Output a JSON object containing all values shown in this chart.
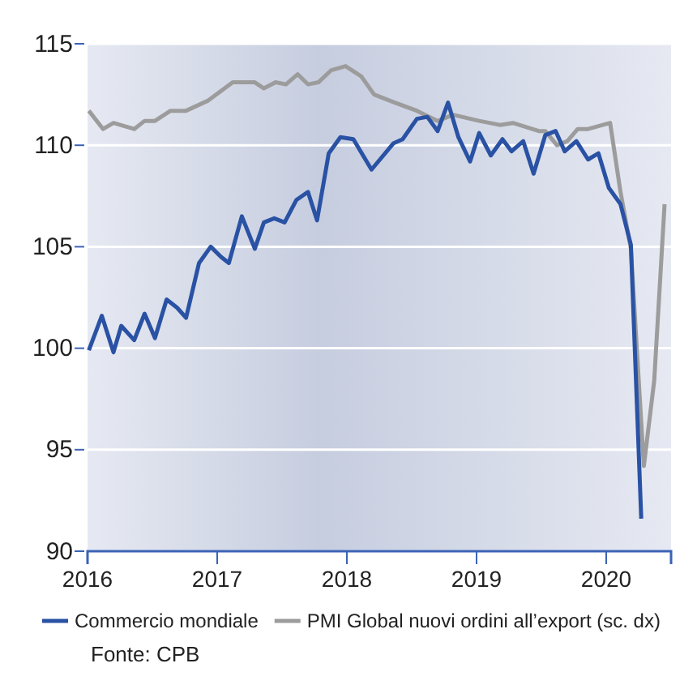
{
  "chart_data": {
    "type": "line",
    "xlim": [
      2016,
      2020.5
    ],
    "xticks": [
      2016,
      2017,
      2018,
      2019,
      2020
    ],
    "ylim": [
      90,
      115
    ],
    "yticks": [
      90,
      95,
      100,
      105,
      110,
      115
    ],
    "grid": "y",
    "legend": "bottom",
    "line_style": "solid",
    "marker": "none",
    "series": [
      {
        "name": "Commercio mondiale",
        "color": "#2a52a4",
        "x": [
          2016.01,
          2016.11,
          2016.2,
          2016.26,
          2016.36,
          2016.44,
          2016.52,
          2016.61,
          2016.69,
          2016.76,
          2016.86,
          2016.95,
          2017.03,
          2017.09,
          2017.19,
          2017.29,
          2017.36,
          2017.44,
          2017.52,
          2017.61,
          2017.7,
          2017.77,
          2017.86,
          2017.95,
          2018.05,
          2018.19,
          2018.36,
          2018.43,
          2018.54,
          2018.62,
          2018.7,
          2018.78,
          2018.86,
          2018.95,
          2019.02,
          2019.11,
          2019.2,
          2019.27,
          2019.36,
          2019.44,
          2019.53,
          2019.61,
          2019.68,
          2019.77,
          2019.86,
          2019.94,
          2020.02,
          2020.11,
          2020.19,
          2020.27
        ],
        "values": [
          99.9,
          101.6,
          99.8,
          101.1,
          100.4,
          101.7,
          100.5,
          102.4,
          102,
          101.5,
          104.2,
          105,
          104.5,
          104.2,
          106.5,
          104.9,
          106.2,
          106.4,
          106.2,
          107.3,
          107.7,
          106.3,
          109.6,
          110.4,
          110.3,
          108.8,
          110.1,
          110.3,
          111.3,
          111.4,
          110.7,
          112.1,
          110.4,
          109.2,
          110.6,
          109.5,
          110.3,
          109.7,
          110.2,
          108.6,
          110.5,
          110.7,
          109.7,
          110.2,
          109.3,
          109.6,
          107.9,
          107.1,
          105.1,
          91.6
        ]
      },
      {
        "name": "PMI Global nuovi ordini all’export (sc. dx)",
        "color": "#9c9c9c",
        "x": [
          2016.01,
          2016.12,
          2016.2,
          2016.36,
          2016.44,
          2016.52,
          2016.64,
          2016.76,
          2016.93,
          2017.12,
          2017.29,
          2017.36,
          2017.45,
          2017.53,
          2017.62,
          2017.7,
          2017.78,
          2017.88,
          2017.99,
          2018.11,
          2018.21,
          2018.37,
          2018.54,
          2018.7,
          2018.82,
          2019.02,
          2019.18,
          2019.28,
          2019.38,
          2019.48,
          2019.53,
          2019.62,
          2019.7,
          2019.78,
          2019.86,
          2020.03,
          2020.11,
          2020.19,
          2020.29,
          2020.37,
          2020.45
        ],
        "values": [
          111.7,
          110.8,
          111.1,
          110.8,
          111.2,
          111.2,
          111.7,
          111.7,
          112.2,
          113.1,
          113.1,
          112.8,
          113.1,
          113,
          113.5,
          113,
          113.1,
          113.7,
          113.9,
          113.4,
          112.5,
          112.1,
          111.7,
          111.2,
          111.5,
          111.2,
          111,
          111.1,
          110.9,
          110.7,
          110.7,
          110,
          110.2,
          110.8,
          110.8,
          111.1,
          107.7,
          104.9,
          94.2,
          98.4,
          107.1
        ]
      }
    ],
    "annotations": [
      "Fonte: CPB"
    ]
  }
}
